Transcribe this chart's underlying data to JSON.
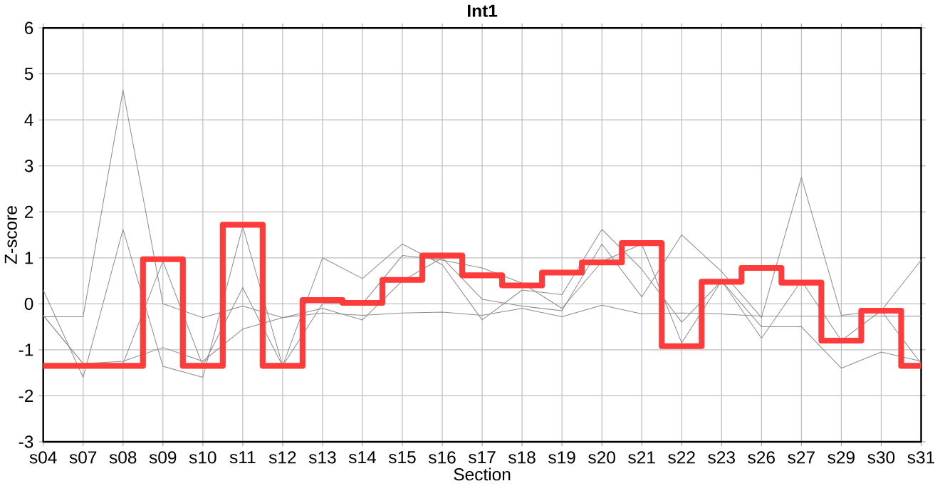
{
  "chart_data": {
    "type": "line",
    "title": "Int1",
    "xlabel": "Section",
    "ylabel": "Z-score",
    "categories": [
      "s04",
      "s07",
      "s08",
      "s09",
      "s10",
      "s11",
      "s12",
      "s13",
      "s14",
      "s15",
      "s16",
      "s17",
      "s18",
      "s19",
      "s20",
      "s21",
      "s22",
      "s23",
      "s26",
      "s27",
      "s29",
      "s30",
      "s31"
    ],
    "ylim": [
      -3,
      6
    ],
    "yticks": [
      -3,
      -2,
      -1,
      0,
      1,
      2,
      3,
      4,
      5,
      6
    ],
    "grid": true,
    "marker": "none",
    "line_style": "solid",
    "series": [
      {
        "color": "#8c8c8c",
        "values": [
          -0.28,
          -0.28,
          4.65,
          0.0,
          -0.3,
          -0.05,
          -0.3,
          -0.1,
          -0.35,
          0.5,
          1.0,
          0.1,
          -0.05,
          -0.15,
          1.3,
          0.15,
          1.5,
          0.7,
          -0.3,
          2.75,
          -0.25,
          -0.15,
          0.95
        ]
      },
      {
        "color": "#8c8c8c",
        "values": [
          0.3,
          -1.6,
          1.62,
          -1.36,
          -1.6,
          1.68,
          -1.35,
          1.0,
          0.55,
          1.3,
          0.85,
          -0.35,
          0.3,
          0.2,
          1.62,
          0.75,
          -0.4,
          0.5,
          -0.75,
          0.5,
          -0.8,
          -0.15,
          -1.3
        ]
      },
      {
        "color": "#8c8c8c",
        "values": [
          -0.25,
          -1.3,
          -1.3,
          0.93,
          -1.35,
          0.35,
          -1.35,
          0.0,
          0.0,
          1.05,
          0.95,
          0.78,
          0.45,
          -0.1,
          0.92,
          1.3,
          -0.85,
          0.5,
          -0.5,
          -0.5,
          -1.4,
          -1.05,
          -1.25
        ]
      },
      {
        "color": "#8c8c8c",
        "values": [
          -0.25,
          -1.3,
          -1.25,
          -0.95,
          -1.25,
          -0.55,
          -0.3,
          -0.2,
          -0.25,
          -0.2,
          -0.18,
          -0.25,
          -0.1,
          -0.28,
          -0.03,
          -0.22,
          -0.2,
          -0.22,
          -0.27,
          -0.27,
          -0.27,
          -0.27,
          -0.27
        ]
      },
      {
        "type": "step",
        "color": "#ff3b3b",
        "values": [
          -1.35,
          -1.35,
          -1.35,
          0.97,
          -1.35,
          1.72,
          -1.35,
          0.08,
          0.02,
          0.52,
          1.05,
          0.62,
          0.4,
          0.68,
          0.9,
          1.32,
          -0.92,
          0.48,
          0.78,
          0.46,
          -0.8,
          -0.15,
          -1.35
        ]
      }
    ]
  }
}
